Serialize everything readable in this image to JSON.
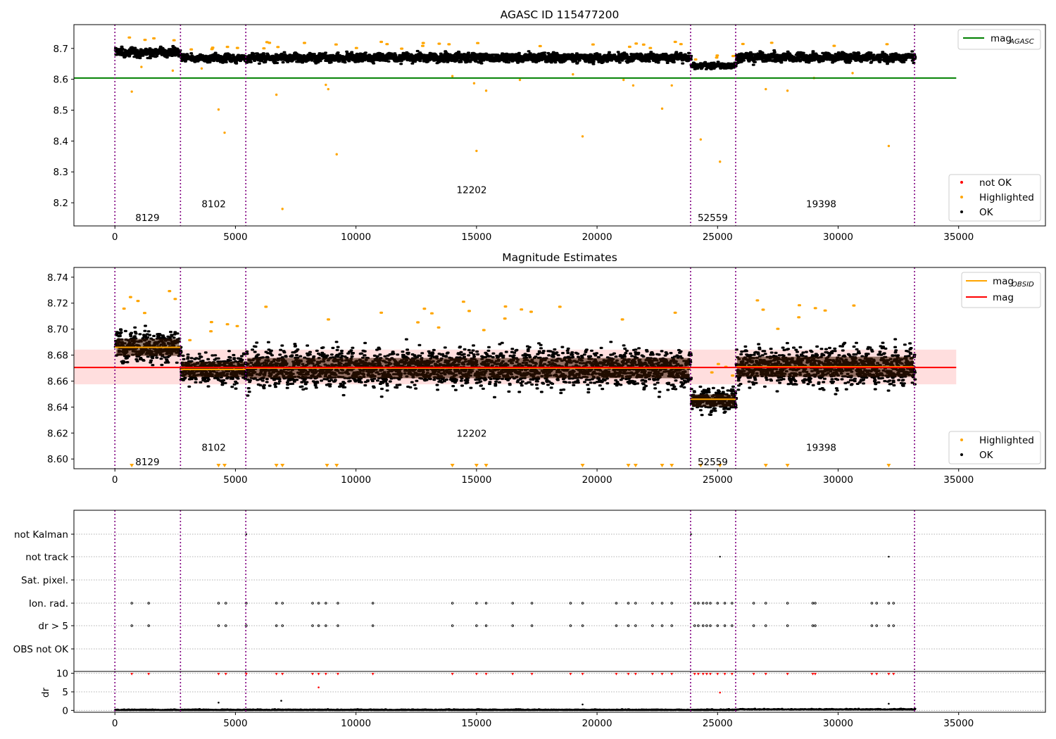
{
  "chart_data": [
    {
      "type": "scatter",
      "title": "AGASC ID 115477200",
      "xlabel": "",
      "ylabel": "",
      "xlim": [
        -1700,
        38600
      ],
      "ylim": [
        8.125,
        8.777
      ],
      "xticks": [
        0,
        5000,
        10000,
        15000,
        20000,
        25000,
        30000,
        35000
      ],
      "yticks": [
        8.2,
        8.3,
        8.4,
        8.5,
        8.6,
        8.7
      ],
      "ytick_labels": [
        "8.2",
        "8.3",
        "8.4",
        "8.5",
        "8.6",
        "8.7"
      ],
      "reference_line": {
        "name": "mag_AGASC",
        "color": "#008000",
        "y": 8.604,
        "x": [
          -1700,
          34900
        ]
      },
      "obsid_boundaries": [
        0,
        2720,
        5430,
        23880,
        25750,
        33170
      ],
      "obsid_labels": [
        {
          "text": "8129",
          "x": 1350,
          "y": 8.152
        },
        {
          "text": "8102",
          "x": 4100,
          "y": 8.197
        },
        {
          "text": "12202",
          "x": 14800,
          "y": 8.242
        },
        {
          "text": "52559",
          "x": 24800,
          "y": 8.152
        },
        {
          "text": "19398",
          "x": 29300,
          "y": 8.197
        }
      ],
      "ok_bands": [
        {
          "x": [
            0,
            2720
          ],
          "center": 8.687,
          "spread": 0.013
        },
        {
          "x": [
            2720,
            5430
          ],
          "center": 8.668,
          "spread": 0.011
        },
        {
          "x": [
            5430,
            23880
          ],
          "center": 8.67,
          "spread": 0.013
        },
        {
          "x": [
            23880,
            25750
          ],
          "center": 8.644,
          "spread": 0.009
        },
        {
          "x": [
            25750,
            33170
          ],
          "center": 8.671,
          "spread": 0.013
        }
      ],
      "highlighted_outliers": [
        [
          700,
          8.56
        ],
        [
          3600,
          8.635
        ],
        [
          4300,
          8.502
        ],
        [
          4550,
          8.427
        ],
        [
          6700,
          8.55
        ],
        [
          6950,
          8.18
        ],
        [
          8750,
          8.582
        ],
        [
          8850,
          8.568
        ],
        [
          9200,
          8.357
        ],
        [
          14000,
          8.61
        ],
        [
          14900,
          8.587
        ],
        [
          15000,
          8.368
        ],
        [
          15400,
          8.563
        ],
        [
          16800,
          8.598
        ],
        [
          19000,
          8.616
        ],
        [
          19400,
          8.415
        ],
        [
          21100,
          8.598
        ],
        [
          21500,
          8.58
        ],
        [
          22700,
          8.505
        ],
        [
          23100,
          8.58
        ],
        [
          24300,
          8.405
        ],
        [
          25100,
          8.333
        ],
        [
          27000,
          8.568
        ],
        [
          27900,
          8.563
        ],
        [
          29000,
          8.604
        ],
        [
          30600,
          8.62
        ],
        [
          32100,
          8.384
        ],
        [
          1100,
          8.64
        ],
        [
          2400,
          8.628
        ]
      ],
      "legends": [
        {
          "position": "upper right",
          "entries": [
            {
              "label": "mag",
              "sub": "AGASC",
              "color": "#008000",
              "marker": "line"
            }
          ]
        },
        {
          "position": "lower right",
          "entries": [
            {
              "label": "not OK",
              "color": "#ff0000",
              "marker": "dot"
            },
            {
              "label": "Highlighted",
              "color": "#ffa500",
              "marker": "dot"
            },
            {
              "label": "OK",
              "color": "#000000",
              "marker": "dot"
            }
          ]
        }
      ]
    },
    {
      "type": "scatter",
      "title": "Magnitude Estimates",
      "xlabel": "",
      "ylabel": "",
      "xlim": [
        -1700,
        38600
      ],
      "ylim": [
        8.5925,
        8.7475
      ],
      "xticks": [
        0,
        5000,
        10000,
        15000,
        20000,
        25000,
        30000,
        35000
      ],
      "yticks": [
        8.6,
        8.62,
        8.64,
        8.66,
        8.68,
        8.7,
        8.72,
        8.74
      ],
      "ytick_labels": [
        "8.60",
        "8.62",
        "8.64",
        "8.66",
        "8.68",
        "8.70",
        "8.72",
        "8.74"
      ],
      "mag_line": {
        "name": "mag",
        "color": "#ff0000",
        "y": 8.6705,
        "x": [
          -1700,
          34900
        ],
        "band": [
          8.6575,
          8.6842
        ]
      },
      "obsid_mag_segments": [
        {
          "x": [
            0,
            2720
          ],
          "y": 8.686
        },
        {
          "x": [
            2720,
            5430
          ],
          "y": 8.669
        },
        {
          "x": [
            5430,
            23880
          ],
          "y": 8.67
        },
        {
          "x": [
            23880,
            25750
          ],
          "y": 8.646
        },
        {
          "x": [
            25750,
            33170
          ],
          "y": 8.671
        }
      ],
      "obsid_boundaries": [
        0,
        2720,
        5430,
        23880,
        25750,
        33170
      ],
      "obsid_labels": [
        {
          "text": "8129",
          "x": 1350,
          "y": 8.598
        },
        {
          "text": "8102",
          "x": 4100,
          "y": 8.609
        },
        {
          "text": "12202",
          "x": 14800,
          "y": 8.62
        },
        {
          "text": "52559",
          "x": 24800,
          "y": 8.598
        },
        {
          "text": "19398",
          "x": 29300,
          "y": 8.609
        }
      ],
      "ok_bands": [
        {
          "x": [
            0,
            2720
          ],
          "center": 8.686,
          "spread": 0.011
        },
        {
          "x": [
            2720,
            5430
          ],
          "center": 8.669,
          "spread": 0.01
        },
        {
          "x": [
            5430,
            23880
          ],
          "center": 8.67,
          "spread": 0.013
        },
        {
          "x": [
            23880,
            25750
          ],
          "center": 8.645,
          "spread": 0.008
        },
        {
          "x": [
            25750,
            33170
          ],
          "center": 8.671,
          "spread": 0.013
        }
      ],
      "clipped_highlight_x": [
        700,
        4300,
        4550,
        6700,
        6950,
        8800,
        9200,
        14000,
        15000,
        15400,
        19400,
        21300,
        21600,
        22700,
        23100,
        24300,
        25100,
        27000,
        27900,
        32100
      ],
      "legends": [
        {
          "position": "upper right",
          "entries": [
            {
              "label": "mag",
              "sub": "OBSID",
              "color": "#ffa500",
              "marker": "line"
            },
            {
              "label": "mag",
              "color": "#ff0000",
              "marker": "line"
            }
          ]
        },
        {
          "position": "lower right",
          "entries": [
            {
              "label": "Highlighted",
              "color": "#ffa500",
              "marker": "dot"
            },
            {
              "label": "OK",
              "color": "#000000",
              "marker": "dot"
            }
          ]
        }
      ]
    },
    {
      "type": "scatter",
      "title": "",
      "xlabel": "",
      "ylabel": "",
      "xlim": [
        -1700,
        38600
      ],
      "flag_categories": [
        "not Kalman",
        "not track",
        "Sat. pixel.",
        "Ion. rad.",
        "dr > 5",
        "OBS not OK"
      ],
      "flagged_x": [
        700,
        1400,
        4300,
        4600,
        5450,
        6700,
        6950,
        8200,
        8450,
        8750,
        9250,
        10700,
        14000,
        15000,
        15400,
        16500,
        17300,
        18900,
        19400,
        20800,
        21300,
        21600,
        22300,
        22700,
        23100,
        24050,
        24200,
        24400,
        24550,
        24700,
        25000,
        25300,
        25600,
        26500,
        27000,
        27900,
        28950,
        29050,
        31400,
        31600,
        32100,
        32300
      ],
      "not_kalman_x": [
        5450,
        23900
      ],
      "not_track_x": [
        25100,
        32100
      ],
      "legends": []
    },
    {
      "type": "scatter",
      "title": "",
      "xlabel": "",
      "ylabel": "dr",
      "xlim": [
        -1700,
        38600
      ],
      "ylim": [
        -0.5,
        10.5
      ],
      "xticks": [
        0,
        5000,
        10000,
        15000,
        20000,
        25000,
        30000,
        35000
      ],
      "yticks": [
        0,
        5,
        10
      ],
      "ytick_labels": [
        "0",
        "5",
        "10"
      ],
      "obsid_boundaries": [
        0,
        2720,
        5430,
        23880,
        25750,
        33170
      ],
      "clipped_dr_x": [
        700,
        1400,
        4300,
        4600,
        5450,
        6700,
        6950,
        8200,
        8450,
        8750,
        9250,
        10700,
        14000,
        15000,
        15400,
        16500,
        17300,
        18900,
        19400,
        20800,
        21300,
        21600,
        22300,
        22700,
        23100,
        24050,
        24200,
        24400,
        24550,
        24700,
        25000,
        25300,
        25600,
        26500,
        27000,
        27900,
        28950,
        29050,
        31400,
        31600,
        32100,
        32300
      ],
      "large_dr_points": [
        [
          8450,
          6.2
        ],
        [
          25100,
          4.8
        ],
        [
          4300,
          2.1
        ],
        [
          6900,
          2.6
        ],
        [
          19400,
          1.6
        ],
        [
          32100,
          1.8
        ]
      ],
      "legends": []
    }
  ]
}
